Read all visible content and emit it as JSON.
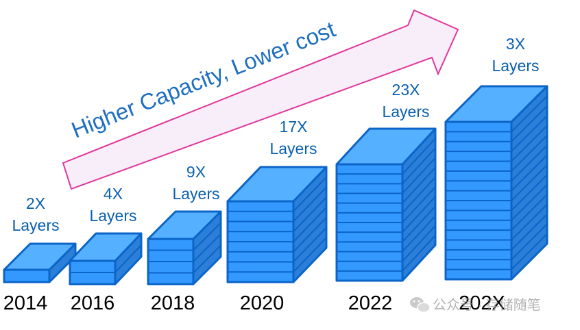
{
  "banner": {
    "text": "Higher Capacity, Lower cost"
  },
  "stacks": [
    {
      "year": "2014",
      "label_line1": "2X",
      "label_line2": "Layers"
    },
    {
      "year": "2016",
      "label_line1": "4X",
      "label_line2": "Layers"
    },
    {
      "year": "2018",
      "label_line1": "9X",
      "label_line2": "Layers"
    },
    {
      "year": "2020",
      "label_line1": "17X",
      "label_line2": "Layers"
    },
    {
      "year": "2022",
      "label_line1": "23X",
      "label_line2": "Layers"
    },
    {
      "year": "202X",
      "label_line1": "3X",
      "label_line2": "Layers"
    }
  ],
  "watermark": {
    "text": "公众号 · 存储随笔",
    "icon": "wechat-icon"
  },
  "colors": {
    "front": "#3399ff",
    "top": "#55b0ff",
    "side": "#2b7fd8",
    "edge": "#0b64c8",
    "label": "#0a5fb0",
    "arrow_fill": "#f7eef9",
    "arrow_stroke": "#e0379a"
  }
}
